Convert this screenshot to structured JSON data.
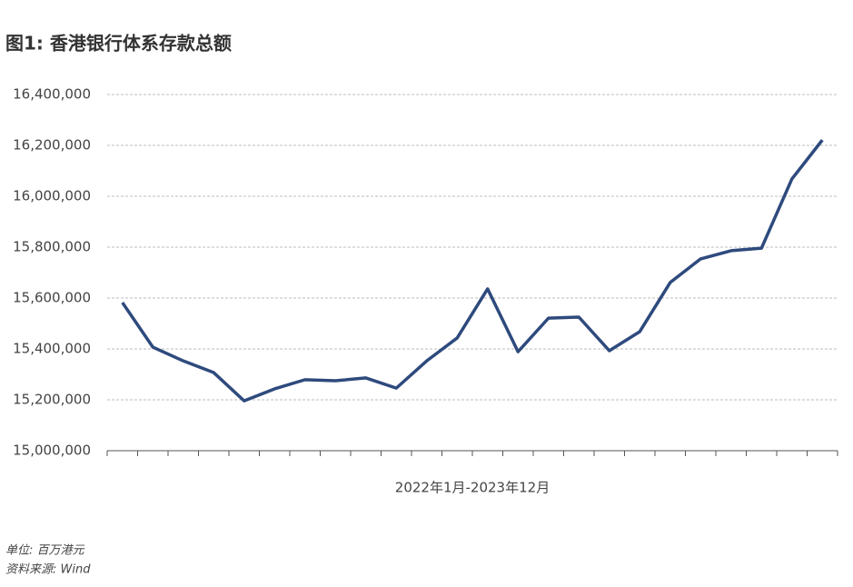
{
  "chart_data": {
    "type": "line",
    "title": "图1: 香港银行体系存款总额",
    "x_label": "2022年1月-2023年12月",
    "notes": [
      "单位: 百万港元",
      "资料来源: Wind"
    ],
    "categories": [
      null,
      null,
      null,
      null,
      null,
      null,
      null,
      null,
      null,
      null,
      null,
      null,
      null,
      null,
      null,
      null,
      null,
      null,
      null,
      null,
      null,
      null,
      null,
      null
    ],
    "series": [
      {
        "name": "香港银行体系存款总额",
        "color": "#2e4a7d",
        "values": [
          15582000,
          15407000,
          15353000,
          15307000,
          15196000,
          15243000,
          15279000,
          15275000,
          15286000,
          15246000,
          15353000,
          15443000,
          15636000,
          15389000,
          15521000,
          15525000,
          15393000,
          15468000,
          15661000,
          15754000,
          15786000,
          15796000,
          16068000,
          16221000
        ]
      }
    ],
    "ylim": [
      15000000,
      16400000
    ],
    "yticks": [
      {
        "value": 15000000,
        "label": "15,000,000"
      },
      {
        "value": 15200000,
        "label": "15,200,000"
      },
      {
        "value": 15400000,
        "label": "15,400,000"
      },
      {
        "value": 15600000,
        "label": "15,600,000"
      },
      {
        "value": 15800000,
        "label": "15,800,000"
      },
      {
        "value": 16000000,
        "label": "16,000,000"
      },
      {
        "value": 16200000,
        "label": "16,200,000"
      },
      {
        "value": 16400000,
        "label": "16,400,000"
      }
    ],
    "grid": true
  }
}
